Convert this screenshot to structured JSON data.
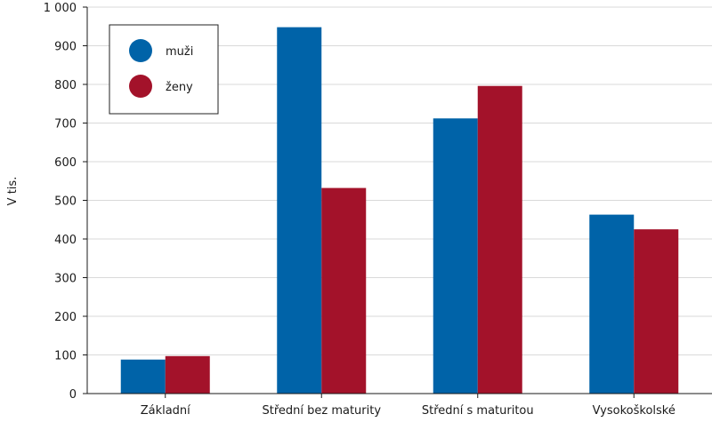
{
  "chart_data": {
    "type": "bar",
    "categories": [
      "Základní",
      "Střední bez maturity",
      "Střední s maturitou",
      "Vysokoškolské"
    ],
    "series": [
      {
        "name": "muži",
        "color": "#0063a8",
        "values": [
          88,
          948,
          712,
          463
        ]
      },
      {
        "name": "ženy",
        "color": "#a3122a",
        "values": [
          97,
          532,
          796,
          425
        ]
      }
    ],
    "ylabel": "V tis.",
    "ylim": [
      0,
      1000
    ],
    "yticks": [
      0,
      100,
      200,
      300,
      400,
      500,
      600,
      700,
      800,
      900,
      1000
    ],
    "ytick_labels": [
      "0",
      "100",
      "200",
      "300",
      "400",
      "500",
      "600",
      "700",
      "800",
      "900",
      "1 000"
    ],
    "grid": true,
    "legend_position": "top-left"
  }
}
